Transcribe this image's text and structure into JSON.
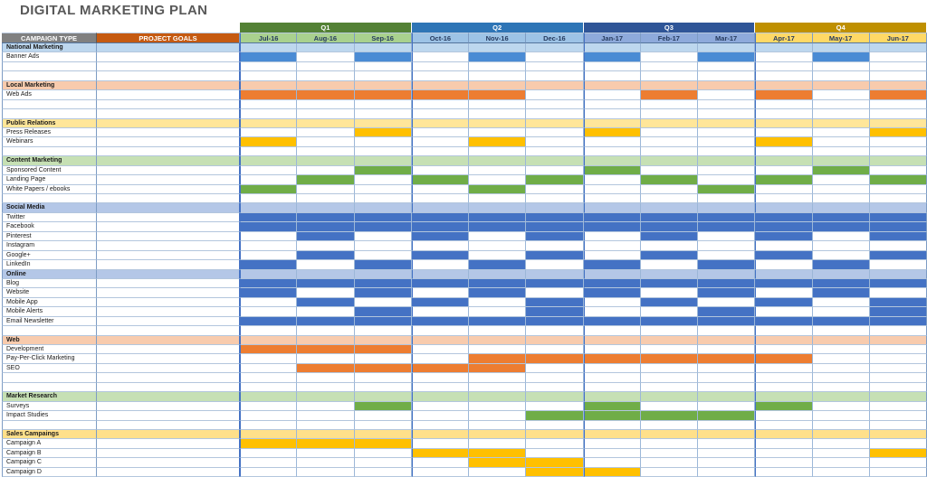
{
  "title": "DIGITAL MARKETING PLAN",
  "headers": {
    "campaign_type": "CAMPAIGN TYPE",
    "project_goals": "PROJECT GOALS"
  },
  "quarters": [
    {
      "label": "Q1",
      "bar_color": "#538135",
      "month_bg": "#a9d18e",
      "months": [
        "Jul-16",
        "Aug-16",
        "Sep-16"
      ]
    },
    {
      "label": "Q2",
      "bar_color": "#2e75b6",
      "month_bg": "#9dc3e6",
      "months": [
        "Oct-16",
        "Nov-16",
        "Dec-16"
      ]
    },
    {
      "label": "Q3",
      "bar_color": "#2f5597",
      "month_bg": "#8eaadb",
      "months": [
        "Jan-17",
        "Feb-17",
        "Mar-17"
      ]
    },
    {
      "label": "Q4",
      "bar_color": "#bf9000",
      "month_bg": "#ffd966",
      "months": [
        "Apr-17",
        "May-17",
        "Jun-17"
      ]
    }
  ],
  "palette": {
    "blue": "#4a8bd4",
    "social_blue": "#4472c4",
    "orange": "#ed7d31",
    "gold": "#ffc000",
    "green": "#70ad47"
  },
  "rows": [
    {
      "kind": "section",
      "label": "National Marketing",
      "bg": "#bdd7ee"
    },
    {
      "kind": "item",
      "label": "Banner Ads",
      "bar": "blue",
      "months": [
        0,
        2,
        4,
        6,
        8,
        10
      ]
    },
    {
      "kind": "empty"
    },
    {
      "kind": "empty"
    },
    {
      "kind": "section",
      "label": "Local Marketing",
      "bg": "#f8cbad"
    },
    {
      "kind": "item",
      "label": "Web Ads",
      "bar": "orange",
      "months": [
        0,
        1,
        2,
        3,
        4,
        7,
        9,
        11
      ]
    },
    {
      "kind": "empty"
    },
    {
      "kind": "empty"
    },
    {
      "kind": "section",
      "label": "Public Relations",
      "bg": "#ffe699"
    },
    {
      "kind": "item",
      "label": "Press Releases",
      "bar": "gold",
      "months": [
        2,
        6,
        11
      ]
    },
    {
      "kind": "item",
      "label": "Webinars",
      "bar": "gold",
      "months": [
        0,
        4,
        9
      ]
    },
    {
      "kind": "empty"
    },
    {
      "kind": "section",
      "label": "Content Marketing",
      "bg": "#c6e0b4"
    },
    {
      "kind": "item",
      "label": "Sponsored Content",
      "bar": "green",
      "months": [
        2,
        6,
        10
      ]
    },
    {
      "kind": "item",
      "label": "Landing Page",
      "bar": "green",
      "months": [
        1,
        3,
        5,
        7,
        9,
        11
      ]
    },
    {
      "kind": "item",
      "label": "White Papers / ebooks",
      "bar": "green",
      "months": [
        0,
        4,
        8
      ]
    },
    {
      "kind": "empty"
    },
    {
      "kind": "section",
      "label": "Social Media",
      "bg": "#b4c7e7"
    },
    {
      "kind": "item",
      "label": "Twitter",
      "bar": "social_blue",
      "months": [
        0,
        1,
        2,
        3,
        4,
        5,
        6,
        7,
        8,
        9,
        10,
        11
      ]
    },
    {
      "kind": "item",
      "label": "Facebook",
      "bar": "social_blue",
      "months": [
        0,
        1,
        2,
        3,
        4,
        5,
        6,
        7,
        8,
        9,
        10,
        11
      ]
    },
    {
      "kind": "item",
      "label": "Pinterest",
      "bar": "social_blue",
      "months": [
        1,
        3,
        5,
        7,
        9,
        11
      ]
    },
    {
      "kind": "item",
      "label": "Instagram",
      "bar": "social_blue",
      "months": []
    },
    {
      "kind": "item",
      "label": "Google+",
      "bar": "social_blue",
      "months": [
        1,
        3,
        5,
        7,
        9,
        11
      ]
    },
    {
      "kind": "item",
      "label": "LinkedIn",
      "bar": "social_blue",
      "months": [
        0,
        2,
        4,
        6,
        8,
        10
      ]
    },
    {
      "kind": "section",
      "label": "Online",
      "bg": "#b4c7e7"
    },
    {
      "kind": "item",
      "label": "Blog",
      "bar": "social_blue",
      "months": [
        0,
        1,
        2,
        3,
        4,
        5,
        6,
        7,
        8,
        9,
        10,
        11
      ]
    },
    {
      "kind": "item",
      "label": "Website",
      "bar": "social_blue",
      "months": [
        0,
        2,
        4,
        6,
        8,
        10
      ]
    },
    {
      "kind": "item",
      "label": "Mobile App",
      "bar": "social_blue",
      "months": [
        1,
        3,
        5,
        7,
        9,
        11
      ]
    },
    {
      "kind": "item",
      "label": "Mobile Alerts",
      "bar": "social_blue",
      "months": [
        2,
        5,
        8,
        11
      ]
    },
    {
      "kind": "item",
      "label": "Email Newsletter",
      "bar": "social_blue",
      "months": [
        0,
        1,
        2,
        3,
        4,
        5,
        6,
        7,
        8,
        9,
        10,
        11
      ]
    },
    {
      "kind": "empty"
    },
    {
      "kind": "section",
      "label": "Web",
      "bg": "#f8cbad"
    },
    {
      "kind": "item",
      "label": "Development",
      "bar": "orange",
      "months": [
        0,
        1,
        2
      ]
    },
    {
      "kind": "item",
      "label": "Pay-Per-Click Marketing",
      "bar": "orange",
      "months": [
        4,
        5,
        6,
        7,
        8,
        9
      ]
    },
    {
      "kind": "item",
      "label": "SEO",
      "bar": "orange",
      "months": [
        1,
        2,
        3,
        4
      ]
    },
    {
      "kind": "empty"
    },
    {
      "kind": "empty"
    },
    {
      "kind": "section",
      "label": "Market Research",
      "bg": "#c6e0b4"
    },
    {
      "kind": "item",
      "label": "Surveys",
      "bar": "green",
      "months": [
        2,
        6,
        9
      ]
    },
    {
      "kind": "item",
      "label": "Impact Studies",
      "bar": "green",
      "months": [
        5,
        6,
        7,
        8
      ]
    },
    {
      "kind": "empty"
    },
    {
      "kind": "section",
      "label": "Sales Campaings",
      "bg": "#ffe08a"
    },
    {
      "kind": "item",
      "label": "Campaign A",
      "bar": "gold",
      "months": [
        0,
        1,
        2
      ]
    },
    {
      "kind": "item",
      "label": "Campaign B",
      "bar": "gold",
      "months": [
        3,
        4,
        11
      ]
    },
    {
      "kind": "item",
      "label": "Campaign C",
      "bar": "gold",
      "months": [
        4,
        5
      ]
    },
    {
      "kind": "item",
      "label": "Campaign D",
      "bar": "gold",
      "months": [
        5,
        6
      ]
    }
  ]
}
